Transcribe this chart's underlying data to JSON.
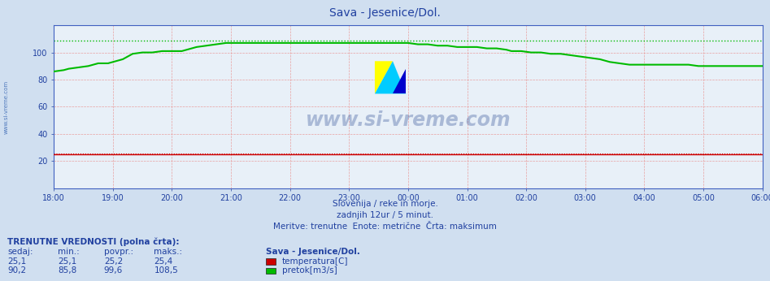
{
  "title": "Sava - Jesenice/Dol.",
  "title_color": "#2040a0",
  "bg_color": "#d0dff0",
  "plot_bg_color": "#e8f0f8",
  "xlabel": "",
  "ylabel": "",
  "xlim": [
    0,
    144
  ],
  "ylim": [
    0,
    120
  ],
  "yticks": [
    20,
    40,
    60,
    80,
    100
  ],
  "xtick_labels": [
    "18:00",
    "19:00",
    "20:00",
    "21:00",
    "22:00",
    "23:00",
    "00:00",
    "01:00",
    "02:00",
    "03:00",
    "04:00",
    "05:00",
    "06:00"
  ],
  "xtick_positions": [
    0,
    12,
    24,
    36,
    48,
    60,
    72,
    84,
    96,
    108,
    120,
    132,
    144
  ],
  "flow_color": "#00bb00",
  "temp_color": "#cc0000",
  "flow_max": 108.5,
  "temp_max": 25.4,
  "watermark": "www.si-vreme.com",
  "subtitle1": "Slovenija / reke in morje.",
  "subtitle2": "zadnjih 12ur / 5 minut.",
  "subtitle3": "Meritve: trenutne  Enote: metrične  Črta: maksimum",
  "legend_title": "Sava - Jesenice/Dol.",
  "legend_items": [
    "temperatura[C]",
    "pretok[m3/s]"
  ],
  "legend_colors": [
    "#cc0000",
    "#00bb00"
  ],
  "table_header": "TRENUTNE VREDNOSTI (polna črta):",
  "table_cols": [
    "sedaj:",
    "min.:",
    "povpr.:",
    "maks.:"
  ],
  "table_data_str": [
    [
      "25,1",
      "25,1",
      "25,2",
      "25,4"
    ],
    [
      "90,2",
      "85,8",
      "99,6",
      "108,5"
    ]
  ],
  "flow_x": [
    0,
    2,
    3,
    5,
    7,
    9,
    11,
    12,
    14,
    16,
    18,
    20,
    22,
    24,
    26,
    27,
    29,
    31,
    33,
    35,
    36,
    38,
    40,
    42,
    44,
    46,
    48,
    50,
    52,
    54,
    56,
    58,
    60,
    62,
    64,
    66,
    68,
    70,
    72,
    74,
    76,
    78,
    80,
    82,
    84,
    86,
    88,
    90,
    92,
    93,
    95,
    97,
    99,
    101,
    103,
    105,
    107,
    109,
    111,
    113,
    115,
    117,
    119,
    121,
    123,
    125,
    127,
    129,
    131,
    133,
    135,
    137,
    139,
    141,
    143,
    144
  ],
  "flow_y": [
    86,
    87,
    88,
    89,
    90,
    92,
    92,
    93,
    95,
    99,
    100,
    100,
    101,
    101,
    101,
    102,
    104,
    105,
    106,
    107,
    107,
    107,
    107,
    107,
    107,
    107,
    107,
    107,
    107,
    107,
    107,
    107,
    107,
    107,
    107,
    107,
    107,
    107,
    107,
    106,
    106,
    105,
    105,
    104,
    104,
    104,
    103,
    103,
    102,
    101,
    101,
    100,
    100,
    99,
    99,
    98,
    97,
    96,
    95,
    93,
    92,
    91,
    91,
    91,
    91,
    91,
    91,
    91,
    90,
    90,
    90,
    90,
    90,
    90,
    90,
    90
  ],
  "temp_y_val": 25.1
}
